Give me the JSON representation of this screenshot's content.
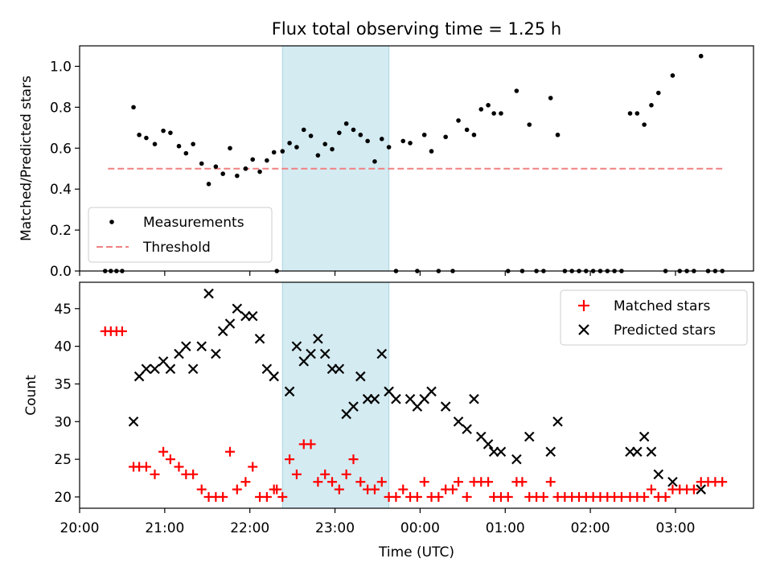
{
  "chart_data": [
    {
      "type": "scatter",
      "title": "Flux total observing time = 1.25 h",
      "ylabel": "Matched/Predicted stars",
      "xlabel": "",
      "ylim": [
        0,
        1.1
      ],
      "yticks": [
        0.0,
        0.2,
        0.4,
        0.6,
        0.8,
        1.0
      ],
      "ytick_labels": [
        "0.0",
        "0.2",
        "0.4",
        "0.6",
        "0.8",
        "1.0"
      ],
      "xlim": [
        "20:00",
        "03:55"
      ],
      "shaded_region": {
        "start": "22:23",
        "end": "23:38",
        "color": "#d4ebf2"
      },
      "legend_position": "lower-left",
      "threshold": {
        "name": "Threshold",
        "value": 0.5,
        "x_start": "20:20",
        "x_end": "03:33",
        "color": "#f08080"
      },
      "series": [
        {
          "name": "Measurements",
          "color": "#000000",
          "points": [
            [
              "20:18",
              0.0
            ],
            [
              "20:22",
              0.0
            ],
            [
              "20:26",
              0.0
            ],
            [
              "20:30",
              0.0
            ],
            [
              "20:38",
              0.8
            ],
            [
              "20:42",
              0.665
            ],
            [
              "20:47",
              0.65
            ],
            [
              "20:53",
              0.62
            ],
            [
              "20:59",
              0.685
            ],
            [
              "21:04",
              0.675
            ],
            [
              "21:10",
              0.61
            ],
            [
              "21:15",
              0.575
            ],
            [
              "21:20",
              0.62
            ],
            [
              "21:26",
              0.525
            ],
            [
              "21:31",
              0.425
            ],
            [
              "21:36",
              0.51
            ],
            [
              "21:41",
              0.475
            ],
            [
              "21:46",
              0.6
            ],
            [
              "21:51",
              0.465
            ],
            [
              "21:57",
              0.5
            ],
            [
              "22:02",
              0.545
            ],
            [
              "22:07",
              0.485
            ],
            [
              "22:12",
              0.54
            ],
            [
              "22:17",
              0.58
            ],
            [
              "22:19",
              0.0
            ],
            [
              "22:23",
              0.585
            ],
            [
              "22:28",
              0.625
            ],
            [
              "22:33",
              0.605
            ],
            [
              "22:38",
              0.69
            ],
            [
              "22:43",
              0.66
            ],
            [
              "22:48",
              0.565
            ],
            [
              "22:53",
              0.62
            ],
            [
              "22:58",
              0.595
            ],
            [
              "23:03",
              0.675
            ],
            [
              "23:08",
              0.72
            ],
            [
              "23:13",
              0.69
            ],
            [
              "23:18",
              0.665
            ],
            [
              "23:23",
              0.635
            ],
            [
              "23:28",
              0.535
            ],
            [
              "23:33",
              0.645
            ],
            [
              "23:38",
              0.605
            ],
            [
              "23:43",
              0.0
            ],
            [
              "23:48",
              0.635
            ],
            [
              "23:53",
              0.625
            ],
            [
              "23:58",
              0.0
            ],
            [
              "00:03",
              0.665
            ],
            [
              "00:08",
              0.585
            ],
            [
              "00:13",
              0.0
            ],
            [
              "00:18",
              0.655
            ],
            [
              "00:23",
              0.0
            ],
            [
              "00:27",
              0.735
            ],
            [
              "00:33",
              0.69
            ],
            [
              "00:38",
              0.665
            ],
            [
              "00:43",
              0.79
            ],
            [
              "00:48",
              0.81
            ],
            [
              "00:52",
              0.77
            ],
            [
              "00:57",
              0.77
            ],
            [
              "01:02",
              0.0
            ],
            [
              "01:08",
              0.88
            ],
            [
              "01:12",
              0.0
            ],
            [
              "01:17",
              0.715
            ],
            [
              "01:22",
              0.0
            ],
            [
              "01:27",
              0.0
            ],
            [
              "01:32",
              0.845
            ],
            [
              "01:37",
              0.665
            ],
            [
              "01:42",
              0.0
            ],
            [
              "01:47",
              0.0
            ],
            [
              "01:52",
              0.0
            ],
            [
              "01:57",
              0.0
            ],
            [
              "02:02",
              0.0
            ],
            [
              "02:07",
              0.0
            ],
            [
              "02:12",
              0.0
            ],
            [
              "02:17",
              0.0
            ],
            [
              "02:22",
              0.0
            ],
            [
              "02:28",
              0.77
            ],
            [
              "02:33",
              0.77
            ],
            [
              "02:38",
              0.715
            ],
            [
              "02:43",
              0.81
            ],
            [
              "02:48",
              0.87
            ],
            [
              "02:53",
              0.0
            ],
            [
              "02:58",
              0.955
            ],
            [
              "03:03",
              0.0
            ],
            [
              "03:08",
              0.0
            ],
            [
              "03:13",
              0.0
            ],
            [
              "03:18",
              1.05
            ],
            [
              "03:23",
              0.0
            ],
            [
              "03:28",
              0.0
            ],
            [
              "03:33",
              0.0
            ]
          ]
        }
      ],
      "legend": [
        "Measurements",
        "Threshold"
      ]
    },
    {
      "type": "scatter",
      "title": "",
      "ylabel": "Count",
      "xlabel": "Time (UTC)",
      "ylim": [
        18.5,
        48.5
      ],
      "yticks": [
        20,
        25,
        30,
        35,
        40,
        45
      ],
      "ytick_labels": [
        "20",
        "25",
        "30",
        "35",
        "40",
        "45"
      ],
      "xlim": [
        "20:00",
        "03:55"
      ],
      "xticks": [
        "20:00",
        "21:00",
        "22:00",
        "23:00",
        "00:00",
        "01:00",
        "02:00",
        "03:00"
      ],
      "xtick_labels": [
        "20:00",
        "21:00",
        "22:00",
        "23:00",
        "00:00",
        "01:00",
        "02:00",
        "03:00"
      ],
      "shaded_region": {
        "start": "22:23",
        "end": "23:38",
        "color": "#d4ebf2"
      },
      "legend_position": "upper-right",
      "series": [
        {
          "name": "Matched stars",
          "marker": "plus",
          "color": "#ff0000",
          "points": [
            [
              "20:18",
              42
            ],
            [
              "20:22",
              42
            ],
            [
              "20:26",
              42
            ],
            [
              "20:30",
              42
            ],
            [
              "20:38",
              24
            ],
            [
              "20:42",
              24
            ],
            [
              "20:47",
              24
            ],
            [
              "20:53",
              23
            ],
            [
              "20:59",
              26
            ],
            [
              "21:04",
              25
            ],
            [
              "21:10",
              24
            ],
            [
              "21:15",
              23
            ],
            [
              "21:20",
              23
            ],
            [
              "21:26",
              21
            ],
            [
              "21:31",
              20
            ],
            [
              "21:36",
              20
            ],
            [
              "21:41",
              20
            ],
            [
              "21:46",
              26
            ],
            [
              "21:51",
              21
            ],
            [
              "21:57",
              22
            ],
            [
              "22:02",
              24
            ],
            [
              "22:07",
              20
            ],
            [
              "22:12",
              20
            ],
            [
              "22:17",
              21
            ],
            [
              "22:19",
              21
            ],
            [
              "22:23",
              20
            ],
            [
              "22:28",
              25
            ],
            [
              "22:33",
              23
            ],
            [
              "22:38",
              27
            ],
            [
              "22:43",
              27
            ],
            [
              "22:48",
              22
            ],
            [
              "22:53",
              23
            ],
            [
              "22:58",
              22
            ],
            [
              "23:03",
              21
            ],
            [
              "23:08",
              23
            ],
            [
              "23:13",
              25
            ],
            [
              "23:18",
              22
            ],
            [
              "23:23",
              21
            ],
            [
              "23:28",
              21
            ],
            [
              "23:33",
              22
            ],
            [
              "23:38",
              20
            ],
            [
              "23:43",
              20
            ],
            [
              "23:48",
              21
            ],
            [
              "23:53",
              20
            ],
            [
              "23:58",
              20
            ],
            [
              "00:03",
              22
            ],
            [
              "00:08",
              20
            ],
            [
              "00:13",
              20
            ],
            [
              "00:18",
              21
            ],
            [
              "00:23",
              21
            ],
            [
              "00:27",
              22
            ],
            [
              "00:33",
              20
            ],
            [
              "00:38",
              22
            ],
            [
              "00:43",
              22
            ],
            [
              "00:48",
              22
            ],
            [
              "00:52",
              20
            ],
            [
              "00:57",
              20
            ],
            [
              "01:02",
              20
            ],
            [
              "01:08",
              22
            ],
            [
              "01:12",
              22
            ],
            [
              "01:17",
              20
            ],
            [
              "01:22",
              20
            ],
            [
              "01:27",
              20
            ],
            [
              "01:32",
              22
            ],
            [
              "01:37",
              20
            ],
            [
              "01:42",
              20
            ],
            [
              "01:47",
              20
            ],
            [
              "01:52",
              20
            ],
            [
              "01:57",
              20
            ],
            [
              "02:02",
              20
            ],
            [
              "02:07",
              20
            ],
            [
              "02:12",
              20
            ],
            [
              "02:17",
              20
            ],
            [
              "02:22",
              20
            ],
            [
              "02:28",
              20
            ],
            [
              "02:33",
              20
            ],
            [
              "02:38",
              20
            ],
            [
              "02:43",
              21
            ],
            [
              "02:48",
              20
            ],
            [
              "02:53",
              20
            ],
            [
              "02:58",
              21
            ],
            [
              "03:03",
              21
            ],
            [
              "03:08",
              21
            ],
            [
              "03:13",
              21
            ],
            [
              "03:18",
              22
            ],
            [
              "03:23",
              22
            ],
            [
              "03:28",
              22
            ],
            [
              "03:33",
              22
            ]
          ]
        },
        {
          "name": "Predicted stars",
          "marker": "x",
          "color": "#000000",
          "points": [
            [
              "20:38",
              30
            ],
            [
              "20:42",
              36
            ],
            [
              "20:47",
              37
            ],
            [
              "20:53",
              37
            ],
            [
              "20:59",
              38
            ],
            [
              "21:04",
              37
            ],
            [
              "21:10",
              39
            ],
            [
              "21:15",
              40
            ],
            [
              "21:20",
              37
            ],
            [
              "21:26",
              40
            ],
            [
              "21:31",
              47
            ],
            [
              "21:36",
              39
            ],
            [
              "21:41",
              42
            ],
            [
              "21:46",
              43
            ],
            [
              "21:51",
              45
            ],
            [
              "21:57",
              44
            ],
            [
              "22:02",
              44
            ],
            [
              "22:07",
              41
            ],
            [
              "22:12",
              37
            ],
            [
              "22:17",
              36
            ],
            [
              "22:28",
              34
            ],
            [
              "22:33",
              40
            ],
            [
              "22:38",
              38
            ],
            [
              "22:43",
              39
            ],
            [
              "22:48",
              41
            ],
            [
              "22:53",
              39
            ],
            [
              "22:58",
              37
            ],
            [
              "23:03",
              37
            ],
            [
              "23:08",
              31
            ],
            [
              "23:13",
              32
            ],
            [
              "23:18",
              36
            ],
            [
              "23:23",
              33
            ],
            [
              "23:28",
              33
            ],
            [
              "23:33",
              39
            ],
            [
              "23:38",
              34
            ],
            [
              "23:43",
              33
            ],
            [
              "23:53",
              33
            ],
            [
              "23:58",
              32
            ],
            [
              "00:03",
              33
            ],
            [
              "00:08",
              34
            ],
            [
              "00:18",
              32
            ],
            [
              "00:27",
              30
            ],
            [
              "00:33",
              29
            ],
            [
              "00:38",
              33
            ],
            [
              "00:43",
              28
            ],
            [
              "00:48",
              27
            ],
            [
              "00:52",
              26
            ],
            [
              "00:57",
              26
            ],
            [
              "01:08",
              25
            ],
            [
              "01:17",
              28
            ],
            [
              "01:32",
              26
            ],
            [
              "01:37",
              30
            ],
            [
              "02:28",
              26
            ],
            [
              "02:33",
              26
            ],
            [
              "02:38",
              28
            ],
            [
              "02:43",
              26
            ],
            [
              "02:48",
              23
            ],
            [
              "02:58",
              22
            ],
            [
              "03:18",
              21
            ]
          ]
        }
      ],
      "legend": [
        "Matched stars",
        "Predicted stars"
      ]
    }
  ]
}
